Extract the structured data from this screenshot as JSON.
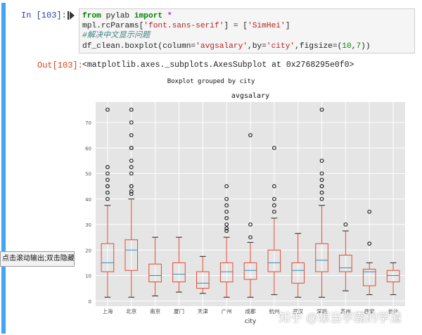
{
  "cell": {
    "in_prompt": "In [103]:",
    "out_prompt": "Out[103]:",
    "code": {
      "line1_kw": "from",
      "line1_mod": " pylab ",
      "line1_kw2": "import",
      "line1_star": " *",
      "line2_a": "mpl.rcParams[",
      "line2_s1": "'font.sans-serif'",
      "line2_b": "] = [",
      "line2_s2": "'SimHei'",
      "line2_c": "]",
      "line3_comment": "#解决中文显示问题",
      "line4_a": "df_clean.boxplot(column=",
      "line4_s1": "'avgsalary'",
      "line4_b": ",by=",
      "line4_s2": "'city'",
      "line4_c": ",figsize=(",
      "line4_n1": "10",
      "line4_d": ",",
      "line4_n2": "7",
      "line4_e": "))"
    },
    "output_text": "<matplotlib.axes._subplots.AxesSubplot at 0x2768295e0f0>"
  },
  "figure": {
    "suptitle": "Boxplot grouped by city",
    "title": "avgsalary",
    "xlabel": "city"
  },
  "tooltip": "点击滚动输出;双击隐藏",
  "watermark": "知乎 @想当学霸的学渣",
  "colors": {
    "panel_bg": "#e5e5e5",
    "grid": "#ffffff",
    "box": "#e24a33",
    "median": "#348abd",
    "flier": "#222222",
    "rail": "#42a5f5"
  },
  "chart_data": {
    "type": "box",
    "categories": [
      "上海",
      "北京",
      "南京",
      "厦门",
      "天津",
      "广州",
      "成都",
      "杭州",
      "武汉",
      "深圳",
      "苏州",
      "西安",
      "长沙"
    ],
    "ylim": [
      -2,
      78
    ],
    "yticks": [
      0,
      10,
      20,
      30,
      40,
      50,
      60,
      70
    ],
    "grid": true,
    "boxes": [
      {
        "whislo": 1.5,
        "q1": 11.5,
        "med": 15,
        "q3": 22.5,
        "whishi": 37.5,
        "fliers": [
          40,
          42.5,
          45,
          45,
          47.5,
          50,
          52.5,
          75
        ]
      },
      {
        "whislo": 1.5,
        "q1": 12,
        "med": 20,
        "q3": 24,
        "whishi": 40,
        "fliers": [
          42,
          43,
          45,
          45,
          50,
          52.5,
          55,
          60,
          60,
          65,
          70,
          75
        ]
      },
      {
        "whislo": 2,
        "q1": 7.5,
        "med": 10,
        "q3": 14.5,
        "whishi": 25,
        "fliers": []
      },
      {
        "whislo": 3.5,
        "q1": 7.5,
        "med": 10.5,
        "q3": 15,
        "whishi": 25,
        "fliers": []
      },
      {
        "whislo": 3,
        "q1": 5,
        "med": 7,
        "q3": 11.5,
        "whishi": 17.5,
        "fliers": []
      },
      {
        "whislo": 1.5,
        "q1": 7.5,
        "med": 11.5,
        "q3": 15,
        "whishi": 25,
        "fliers": [
          27.5,
          28.5,
          30,
          32.5,
          35,
          37.5,
          40,
          45
        ]
      },
      {
        "whislo": 1.5,
        "q1": 8.5,
        "med": 12,
        "q3": 15,
        "whishi": 23,
        "fliers": [
          25,
          30,
          65
        ]
      },
      {
        "whislo": 2.5,
        "q1": 11.5,
        "med": 15,
        "q3": 20,
        "whishi": 32.5,
        "fliers": [
          35,
          37.5,
          40,
          45,
          60
        ]
      },
      {
        "whislo": 1.5,
        "q1": 7,
        "med": 12,
        "q3": 15,
        "whishi": 26.5,
        "fliers": []
      },
      {
        "whislo": 1.5,
        "q1": 11.5,
        "med": 16,
        "q3": 22.5,
        "whishi": 37.5,
        "fliers": [
          40,
          42.5,
          45,
          45,
          47.5,
          50,
          55,
          75
        ]
      },
      {
        "whislo": 4,
        "q1": 11.5,
        "med": 13,
        "q3": 18,
        "whishi": 27.5,
        "fliers": [
          30
        ]
      },
      {
        "whislo": 2.5,
        "q1": 6,
        "med": 11.5,
        "q3": 12.5,
        "whishi": 15,
        "fliers": [
          22.5,
          35
        ]
      },
      {
        "whislo": 2.5,
        "q1": 7.5,
        "med": 10,
        "q3": 12,
        "whishi": 15,
        "fliers": []
      }
    ]
  }
}
